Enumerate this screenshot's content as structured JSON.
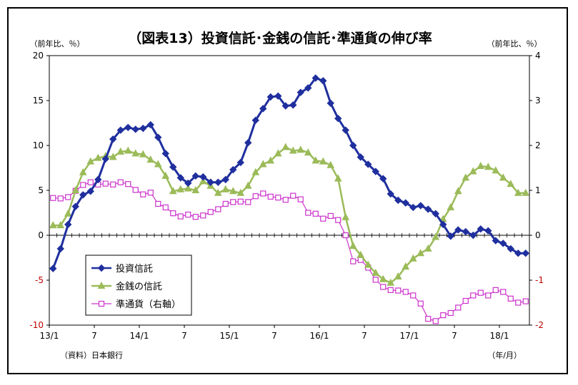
{
  "chart_data": {
    "type": "line",
    "title": "（図表13）投資信託･金銭の信託･準通貨の伸び率",
    "left_unit": "（前年比、％）",
    "right_unit": "（前年比、％）",
    "source": "（資料）日本銀行",
    "x_unit": "（年/月）",
    "x_tick_labels": [
      "13/1",
      "7",
      "14/1",
      "7",
      "15/1",
      "7",
      "16/1",
      "7",
      "17/1",
      "7",
      "18/1"
    ],
    "ylim_left": [
      -10,
      20
    ],
    "ylim_right": [
      -2,
      4
    ],
    "yticks_left": [
      "20",
      "15",
      "10",
      "5",
      "0",
      "-5",
      "-10"
    ],
    "yticks_right": [
      "4",
      "3",
      "2",
      "1",
      "0",
      "-1",
      "-2"
    ],
    "colors": {
      "投資信託": "#1f2f9e",
      "金銭の信託": "#9bbb59",
      "準通貨": "#cc33cc"
    },
    "series": [
      {
        "name": "投資信託",
        "axis": "left",
        "marker": "diamond",
        "values": [
          -3.7,
          -1.5,
          1.2,
          3.2,
          4.5,
          4.9,
          6.2,
          8.5,
          10.7,
          11.7,
          12.0,
          11.8,
          11.9,
          12.3,
          10.9,
          9.1,
          7.6,
          6.4,
          5.8,
          6.6,
          6.5,
          5.9,
          5.9,
          6.2,
          7.3,
          8.1,
          10.3,
          12.8,
          14.1,
          15.4,
          15.5,
          14.4,
          14.5,
          15.9,
          16.4,
          17.5,
          17.2,
          14.7,
          13.0,
          11.7,
          10.0,
          8.7,
          7.9,
          7.1,
          6.3,
          4.6,
          3.9,
          3.6,
          3.1,
          3.3,
          2.9,
          2.4,
          1.2,
          -0.1,
          0.6,
          0.4,
          0.0,
          0.7,
          0.5,
          -0.6,
          -0.9,
          -1.5,
          -2.0,
          -2.0
        ]
      },
      {
        "name": "金銭の信託",
        "axis": "left",
        "marker": "triangle",
        "values": [
          1.1,
          1.1,
          2.4,
          5.0,
          7.0,
          8.2,
          8.6,
          8.8,
          8.7,
          9.3,
          9.4,
          9.1,
          9.0,
          8.4,
          7.9,
          6.6,
          4.9,
          5.1,
          5.2,
          5.0,
          6.0,
          5.5,
          4.7,
          5.1,
          4.9,
          4.7,
          5.5,
          7.0,
          7.9,
          8.3,
          9.1,
          9.8,
          9.4,
          9.5,
          9.2,
          8.3,
          8.2,
          7.8,
          6.3,
          2.0,
          -1.2,
          -2.2,
          -3.3,
          -4.2,
          -4.9,
          -5.3,
          -4.6,
          -3.5,
          -2.6,
          -2.0,
          -1.5,
          -0.2,
          1.8,
          3.1,
          4.9,
          6.4,
          7.1,
          7.7,
          7.6,
          7.2,
          6.4,
          5.7,
          4.7,
          4.7
        ]
      },
      {
        "name": "準通貨（右軸）",
        "axis": "right",
        "marker": "square",
        "values": [
          0.83,
          0.82,
          0.85,
          0.99,
          1.12,
          1.18,
          1.13,
          1.15,
          1.13,
          1.18,
          1.14,
          1.01,
          0.91,
          0.95,
          0.7,
          0.62,
          0.49,
          0.42,
          0.46,
          0.41,
          0.44,
          0.52,
          0.58,
          0.7,
          0.74,
          0.75,
          0.74,
          0.87,
          0.93,
          0.86,
          0.84,
          0.79,
          0.88,
          0.8,
          0.5,
          0.48,
          0.37,
          0.43,
          0.34,
          0.0,
          -0.58,
          -0.55,
          -0.72,
          -0.99,
          -1.15,
          -1.22,
          -1.23,
          -1.26,
          -1.34,
          -1.52,
          -1.86,
          -1.91,
          -1.78,
          -1.73,
          -1.61,
          -1.46,
          -1.34,
          -1.28,
          -1.34,
          -1.22,
          -1.26,
          -1.41,
          -1.5,
          -1.47
        ]
      }
    ],
    "legend_placement": "bottom-left"
  }
}
